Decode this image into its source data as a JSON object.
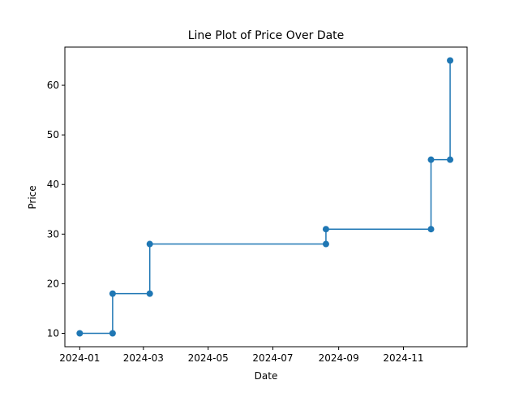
{
  "chart_data": {
    "type": "line",
    "title": "Line Plot of Price Over Date",
    "xlabel": "Date",
    "ylabel": "Price",
    "x_scale": "date",
    "xlim": [
      "2023-12-18",
      "2024-12-31"
    ],
    "ylim": [
      7.3,
      67.7
    ],
    "xticks": [
      "2024-01-01",
      "2024-03-01",
      "2024-05-01",
      "2024-07-01",
      "2024-09-01",
      "2024-11-01"
    ],
    "xtick_labels": [
      "2024-01",
      "2024-03",
      "2024-05",
      "2024-07",
      "2024-09",
      "2024-11"
    ],
    "yticks": [
      10,
      20,
      30,
      40,
      50,
      60
    ],
    "ytick_labels": [
      "10",
      "20",
      "30",
      "40",
      "50",
      "60"
    ],
    "grid": false,
    "series": [
      {
        "color": "#1f77b4",
        "marker": "circle",
        "x": [
          "2024-01-01",
          "2024-02-01",
          "2024-02-01",
          "2024-03-07",
          "2024-03-07",
          "2024-08-20",
          "2024-08-20",
          "2024-11-27",
          "2024-11-27",
          "2024-12-15",
          "2024-12-15"
        ],
        "y": [
          10,
          10,
          18,
          18,
          28,
          28,
          31,
          31,
          45,
          45,
          65
        ]
      }
    ]
  }
}
